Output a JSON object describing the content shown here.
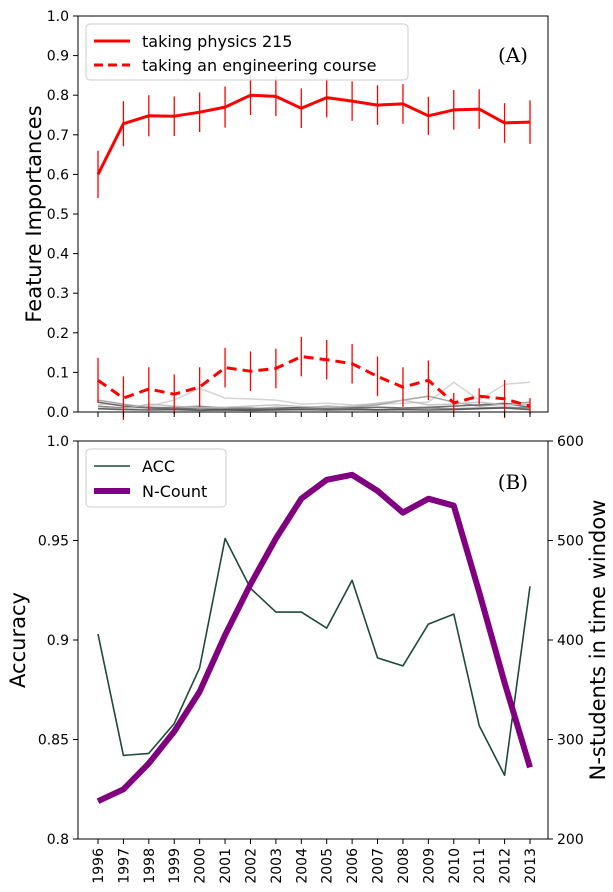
{
  "chart_data": [
    {
      "type": "line",
      "panel_label": "(A)",
      "ylabel": "Feature Importances",
      "ylim": [
        0.0,
        1.0
      ],
      "yticks": [
        0.0,
        0.1,
        0.2,
        0.3,
        0.4,
        0.5,
        0.6,
        0.7,
        0.8,
        0.9,
        1.0
      ],
      "ytick_labels": [
        "0.0",
        "0.1",
        "0.2",
        "0.3",
        "0.4",
        "0.5",
        "0.6",
        "0.7",
        "0.8",
        "0.9",
        "1.0"
      ],
      "x": [
        1996,
        1997,
        1998,
        1999,
        2000,
        2001,
        2002,
        2003,
        2004,
        2005,
        2006,
        2007,
        2008,
        2009,
        2010,
        2011,
        2012,
        2013
      ],
      "legend_position": "top-left",
      "series": [
        {
          "name": "taking physics 215",
          "color": "#ff0000",
          "style": "solid",
          "values": [
            0.6,
            0.728,
            0.748,
            0.747,
            0.757,
            0.77,
            0.8,
            0.797,
            0.767,
            0.794,
            0.785,
            0.775,
            0.778,
            0.748,
            0.763,
            0.765,
            0.73,
            0.732
          ],
          "errors": [
            0.06,
            0.057,
            0.052,
            0.05,
            0.05,
            0.052,
            0.05,
            0.05,
            0.05,
            0.05,
            0.05,
            0.05,
            0.05,
            0.048,
            0.05,
            0.05,
            0.05,
            0.055
          ]
        },
        {
          "name": "taking an engineering course",
          "color": "#ff0000",
          "style": "dashed",
          "values": [
            0.08,
            0.035,
            0.058,
            0.045,
            0.063,
            0.112,
            0.103,
            0.11,
            0.14,
            0.132,
            0.122,
            0.09,
            0.063,
            0.08,
            0.023,
            0.04,
            0.033,
            0.015
          ],
          "errors": [
            0.057,
            0.055,
            0.055,
            0.05,
            0.05,
            0.05,
            0.05,
            0.05,
            0.05,
            0.05,
            0.05,
            0.05,
            0.05,
            0.05,
            0.025,
            0.02,
            0.048,
            0.02
          ]
        }
      ],
      "background_series": [
        {
          "color": "#cccccc",
          "values": [
            0.02,
            0.018,
            0.015,
            0.03,
            0.06,
            0.035,
            0.033,
            0.03,
            0.02,
            0.022,
            0.018,
            0.02,
            0.022,
            0.025,
            0.075,
            0.03,
            0.07,
            0.075
          ]
        },
        {
          "color": "#999999",
          "values": [
            0.03,
            0.02,
            0.01,
            0.012,
            0.015,
            0.01,
            0.008,
            0.012,
            0.01,
            0.015,
            0.012,
            0.018,
            0.03,
            0.04,
            0.025,
            0.015,
            0.02,
            0.025
          ]
        },
        {
          "color": "#555555",
          "values": [
            0.025,
            0.015,
            0.01,
            0.008,
            0.008,
            0.006,
            0.006,
            0.008,
            0.012,
            0.008,
            0.01,
            0.012,
            0.01,
            0.012,
            0.015,
            0.018,
            0.022,
            0.012
          ]
        },
        {
          "color": "#777777",
          "values": [
            0.015,
            0.01,
            0.012,
            0.01,
            0.012,
            0.01,
            0.01,
            0.006,
            0.008,
            0.01,
            0.008,
            0.006,
            0.008,
            0.01,
            0.008,
            0.01,
            0.012,
            0.01
          ]
        },
        {
          "color": "#bbbbbb",
          "values": [
            0.01,
            0.008,
            0.02,
            0.015,
            0.01,
            0.012,
            0.015,
            0.018,
            0.014,
            0.012,
            0.015,
            0.022,
            0.03,
            0.018,
            0.02,
            0.025,
            0.018,
            0.02
          ]
        },
        {
          "color": "#444444",
          "values": [
            0.008,
            0.006,
            0.005,
            0.006,
            0.004,
            0.005,
            0.004,
            0.005,
            0.006,
            0.005,
            0.006,
            0.005,
            0.006,
            0.005,
            0.006,
            0.008,
            0.01,
            0.006
          ]
        }
      ]
    },
    {
      "type": "line",
      "panel_label": "(B)",
      "ylabel": "Accuracy",
      "ylabel_right": "N-students in time window",
      "ylim": [
        0.8,
        1.0
      ],
      "yticks": [
        0.8,
        0.85,
        0.9,
        0.95,
        1.0
      ],
      "ytick_labels": [
        "0.8",
        "0.85",
        "0.9",
        "0.95",
        "1.0"
      ],
      "ylim_right": [
        200,
        600
      ],
      "yticks_right": [
        200,
        300,
        400,
        500,
        600
      ],
      "ytick_labels_right": [
        "200",
        "300",
        "400",
        "500",
        "600"
      ],
      "x": [
        1996,
        1997,
        1998,
        1999,
        2000,
        2001,
        2002,
        2003,
        2004,
        2005,
        2006,
        2007,
        2008,
        2009,
        2010,
        2011,
        2012,
        2013
      ],
      "xtick_labels": [
        "1996",
        "1997",
        "1998",
        "1999",
        "2000",
        "2001",
        "2002",
        "2003",
        "2004",
        "2005",
        "2006",
        "2007",
        "2008",
        "2009",
        "2010",
        "2011",
        "2012",
        "2013"
      ],
      "legend_position": "top-left",
      "series": [
        {
          "name": "ACC",
          "color": "#1f4a38",
          "axis": "left",
          "values": [
            0.903,
            0.842,
            0.843,
            0.858,
            0.886,
            0.951,
            0.926,
            0.914,
            0.914,
            0.906,
            0.93,
            0.891,
            0.887,
            0.908,
            0.913,
            0.857,
            0.832,
            0.927
          ]
        },
        {
          "name": "N-Count",
          "color": "#800080",
          "axis": "right",
          "values": [
            238,
            250,
            276,
            308,
            348,
            405,
            456,
            502,
            542,
            561,
            566,
            550,
            528,
            542,
            535,
            448,
            357,
            272
          ]
        }
      ]
    }
  ]
}
